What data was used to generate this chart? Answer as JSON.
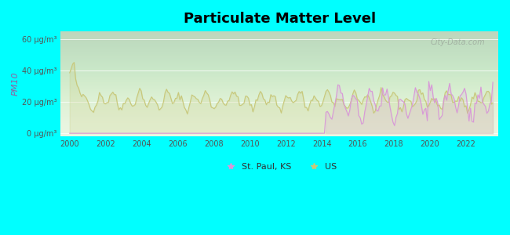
{
  "title": "Particulate Matter Level",
  "ylabel": "PM10",
  "background_color": "#00FFFF",
  "us_color": "#c8c87a",
  "stpaul_color": "#d898d8",
  "watermark": "City-Data.com",
  "yticks": [
    0,
    20,
    40,
    60
  ],
  "ytick_labels": [
    "0 μg/m³",
    "20 μg/m³",
    "40 μg/m³",
    "60 μg/m³"
  ],
  "xlim": [
    1999.5,
    2023.8
  ],
  "ylim": [
    -2,
    65
  ],
  "legend_stpaul": "St. Paul, KS",
  "legend_us": "US"
}
